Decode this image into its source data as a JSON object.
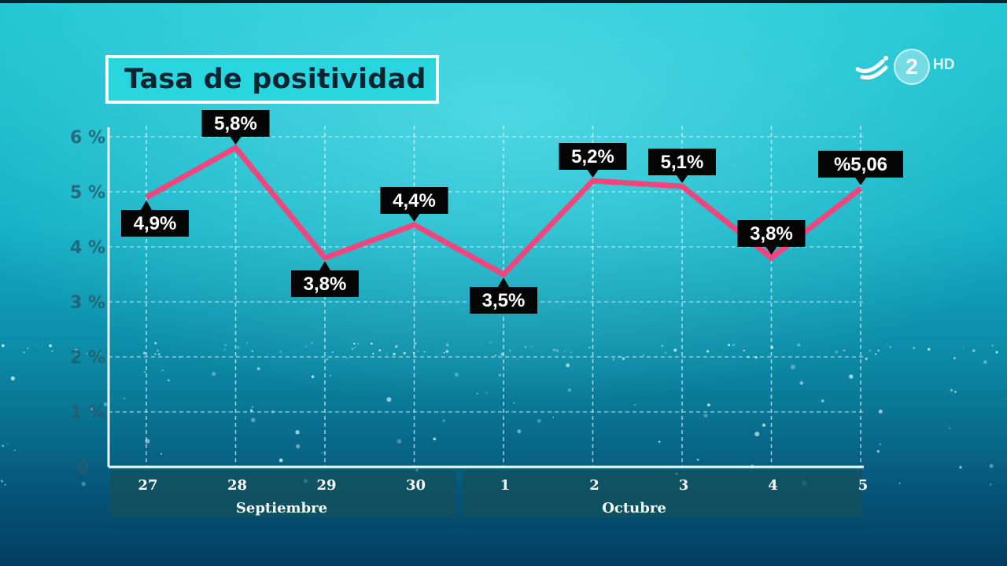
{
  "channel": {
    "logo_digit": "2",
    "logo_hd": "HD",
    "icon": "eitb-swoosh-icon"
  },
  "chart_data": {
    "type": "line",
    "title": "Tasa de positividad",
    "x": [
      "27",
      "28",
      "29",
      "30",
      "1",
      "2",
      "3",
      "4",
      "5"
    ],
    "groups": [
      {
        "label": "Septiembre",
        "from": 0,
        "to": 3
      },
      {
        "label": "Octubre",
        "from": 4,
        "to": 8
      }
    ],
    "series": [
      {
        "values": [
          4.9,
          5.8,
          3.8,
          4.4,
          3.5,
          5.2,
          5.1,
          3.8,
          5.06
        ],
        "labels": [
          "4,9%",
          "5,8%",
          "3,8%",
          "4,4%",
          "3,5%",
          "5,2%",
          "5,1%",
          "3,8%",
          "%5,06"
        ],
        "label_pos": [
          "below",
          "above",
          "below",
          "above",
          "below",
          "above",
          "above",
          "above",
          "above"
        ],
        "color": "#f0467e"
      }
    ],
    "ylim": [
      0,
      6
    ],
    "yticks": [
      {
        "value": 0,
        "label": "0"
      },
      {
        "value": 1,
        "label": "1 %"
      },
      {
        "value": 2,
        "label": "2 %"
      },
      {
        "value": 3,
        "label": "3 %"
      },
      {
        "value": 4,
        "label": "4 %"
      },
      {
        "value": 5,
        "label": "5 %"
      },
      {
        "value": 6,
        "label": "6 %"
      }
    ],
    "grid": true,
    "colors": {
      "line": "#f0467e",
      "label_bg": "#050505",
      "label_text": "#ffffff",
      "axis": "#e8fbff",
      "title_bg": "#29d6e0"
    }
  }
}
